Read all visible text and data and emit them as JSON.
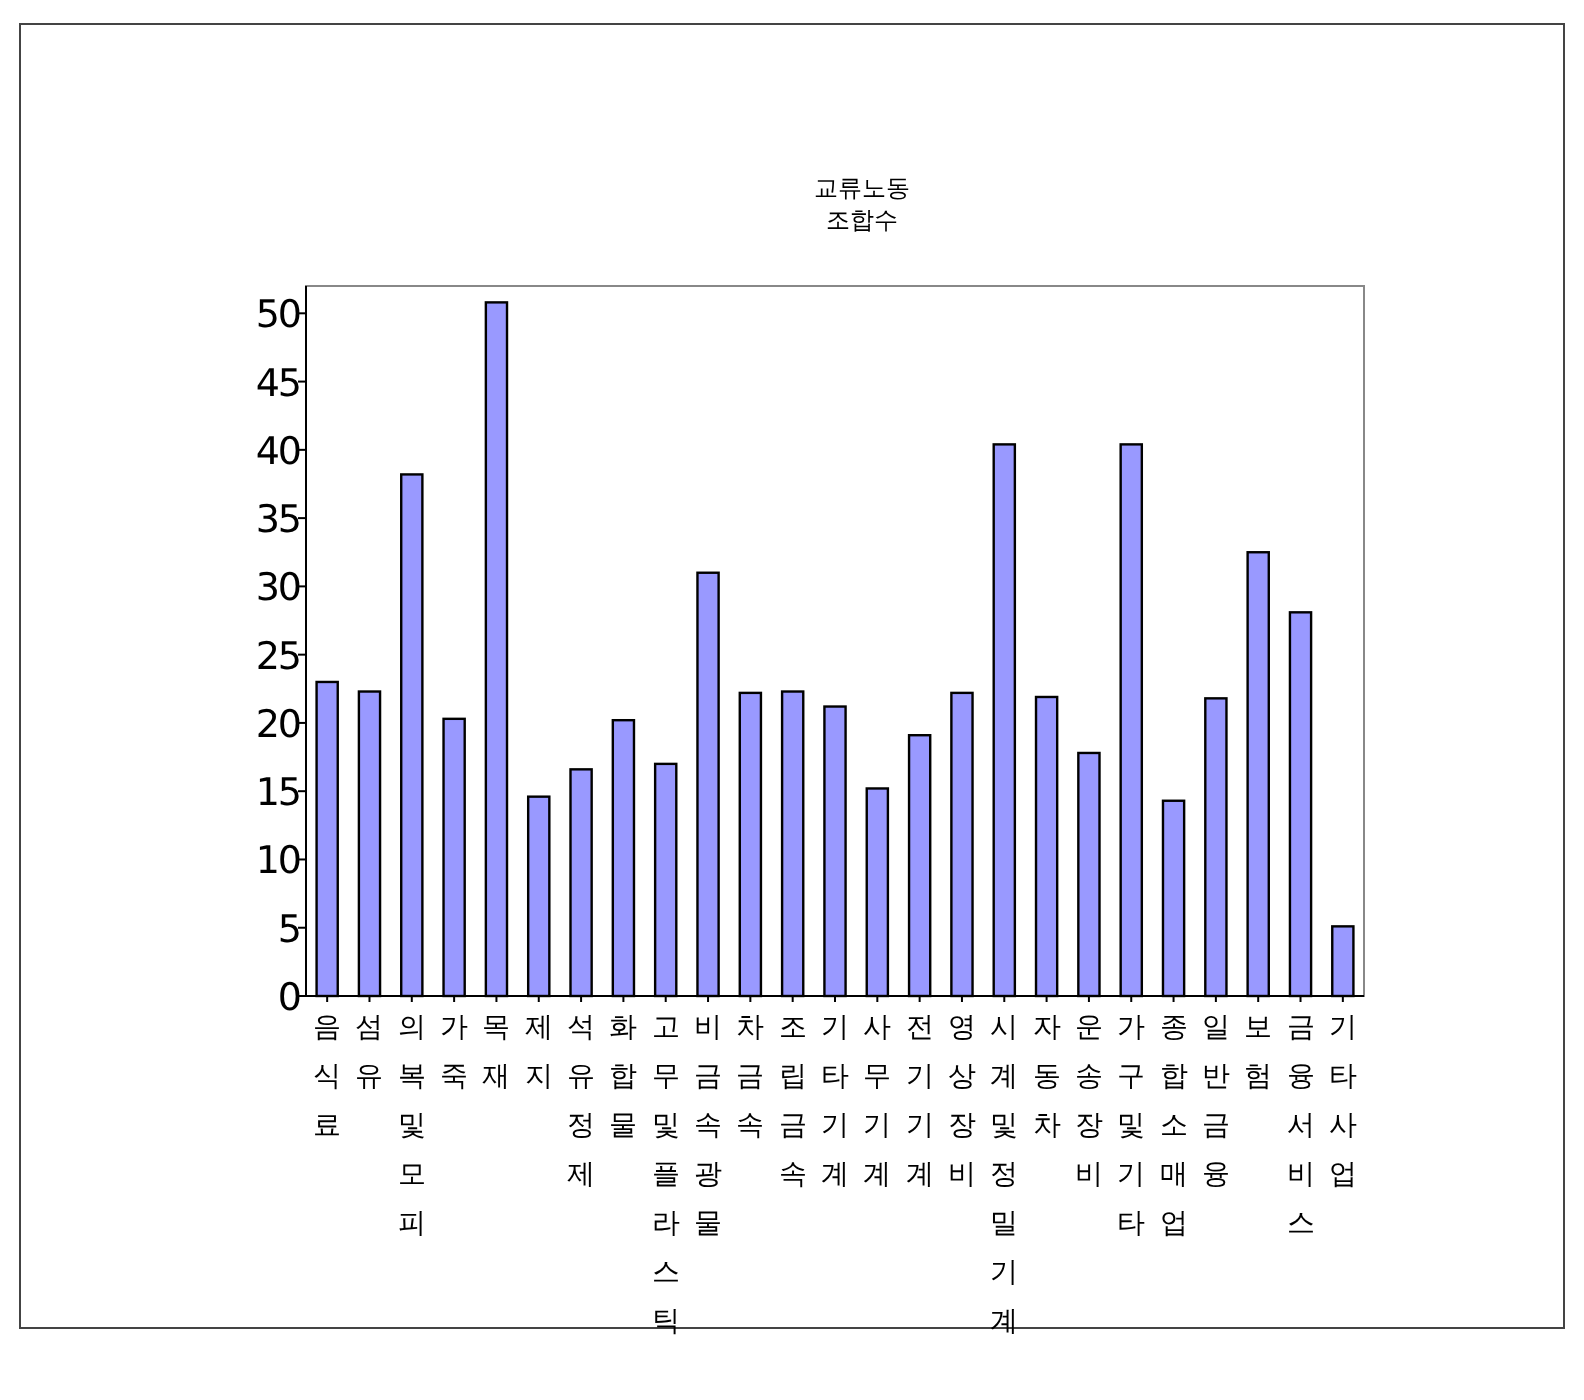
{
  "chart_data": {
    "type": "bar",
    "title": "교류노동\n조합수",
    "categories": [
      "음식료",
      "섬유",
      "의복및모피",
      "가죽",
      "목재",
      "제지",
      "석유정제",
      "화합물",
      "고무및플라스틱",
      "비금속광물",
      "차금속",
      "조립금속",
      "기타기계",
      "사무기계",
      "전기기계",
      "영상장비",
      "시계및정밀기계",
      "자동차",
      "운송장비",
      "가구및기타",
      "종합소매업",
      "일반금융",
      "보험",
      "금융서비스",
      "기타사업"
    ],
    "values": [
      23.0,
      22.3,
      38.2,
      20.3,
      50.8,
      14.6,
      16.6,
      20.2,
      17.0,
      31.0,
      22.2,
      22.3,
      21.2,
      15.2,
      19.1,
      22.2,
      40.4,
      21.9,
      17.8,
      40.4,
      14.3,
      21.8,
      32.5,
      28.1,
      5.1
    ],
    "color": "#9999ff",
    "ylim": [
      0,
      52
    ],
    "yticks": [
      0,
      5,
      10,
      15,
      20,
      25,
      30,
      35,
      40,
      45,
      50
    ]
  }
}
